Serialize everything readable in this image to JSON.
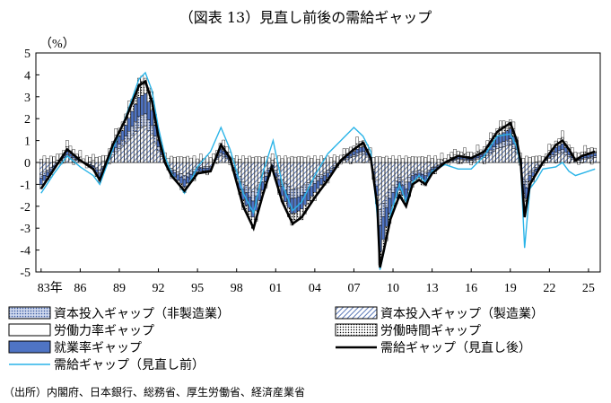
{
  "title": "（図表 13）見直し前後の需給ギャップ",
  "source": "（出所）内閣府、日本銀行、総務省、厚生労働省、経済産業省",
  "chart_data": {
    "type": "bar",
    "stacked": true,
    "ylabel": "（%）",
    "ylim": [
      -5,
      5
    ],
    "yticks": [
      "5",
      "4",
      "3",
      "2",
      "1",
      "0",
      "-1",
      "-2",
      "-3",
      "-4",
      "-5"
    ],
    "xticks": [
      "83年",
      "86",
      "89",
      "92",
      "95",
      "98",
      "01",
      "04",
      "07",
      "10",
      "13",
      "16",
      "19",
      "22",
      "25"
    ],
    "legend": [
      {
        "name": "資本投入ギャップ（非製造業）",
        "style": "dotted-fill"
      },
      {
        "name": "資本投入ギャップ（製造業）",
        "style": "hatched"
      },
      {
        "name": "労働力率ギャップ",
        "style": "white-box"
      },
      {
        "name": "労働時間ギャップ",
        "style": "dots"
      },
      {
        "name": "就業率ギャップ",
        "style": "blue-box"
      },
      {
        "name": "需給ギャップ（見直し後）",
        "style": "black-line"
      },
      {
        "name": "需給ギャップ（見直し前）",
        "style": "cyan-line"
      }
    ],
    "key_points_after": [
      [
        1983.0,
        -1.2
      ],
      [
        1984.0,
        -0.3
      ],
      [
        1985.0,
        0.6
      ],
      [
        1986.0,
        0.1
      ],
      [
        1987.0,
        -0.3
      ],
      [
        1987.5,
        -0.8
      ],
      [
        1988.5,
        0.8
      ],
      [
        1989.5,
        2.0
      ],
      [
        1990.5,
        3.5
      ],
      [
        1991.0,
        3.7
      ],
      [
        1991.5,
        2.8
      ],
      [
        1992.0,
        1.2
      ],
      [
        1992.5,
        0.0
      ],
      [
        1993.0,
        -0.6
      ],
      [
        1994.0,
        -1.3
      ],
      [
        1995.0,
        -0.5
      ],
      [
        1996.0,
        -0.4
      ],
      [
        1996.8,
        0.8
      ],
      [
        1997.5,
        0.2
      ],
      [
        1998.5,
        -2.0
      ],
      [
        1999.3,
        -3.0
      ],
      [
        2000.0,
        -1.5
      ],
      [
        2000.7,
        -0.2
      ],
      [
        2001.5,
        -1.8
      ],
      [
        2002.3,
        -2.8
      ],
      [
        2003.0,
        -2.5
      ],
      [
        2004.0,
        -1.6
      ],
      [
        2005.0,
        -0.8
      ],
      [
        2006.0,
        0.1
      ],
      [
        2007.0,
        0.6
      ],
      [
        2007.7,
        0.9
      ],
      [
        2008.3,
        0.2
      ],
      [
        2008.8,
        -2.0
      ],
      [
        2009.0,
        -4.8
      ],
      [
        2009.3,
        -4.0
      ],
      [
        2009.8,
        -2.6
      ],
      [
        2010.5,
        -1.5
      ],
      [
        2011.0,
        -2.0
      ],
      [
        2011.5,
        -1.0
      ],
      [
        2012.0,
        -0.8
      ],
      [
        2012.5,
        -1.0
      ],
      [
        2013.0,
        -0.5
      ],
      [
        2014.0,
        0.0
      ],
      [
        2015.0,
        0.3
      ],
      [
        2016.0,
        0.2
      ],
      [
        2017.0,
        0.5
      ],
      [
        2018.0,
        1.4
      ],
      [
        2019.0,
        1.8
      ],
      [
        2019.5,
        1.0
      ],
      [
        2019.8,
        0.0
      ],
      [
        2020.1,
        -2.5
      ],
      [
        2020.5,
        -1.0
      ],
      [
        2021.0,
        -0.5
      ],
      [
        2021.5,
        0.0
      ],
      [
        2022.5,
        0.8
      ],
      [
        2023.0,
        1.0
      ],
      [
        2023.5,
        0.6
      ],
      [
        2024.0,
        0.1
      ],
      [
        2024.5,
        0.3
      ],
      [
        2025.5,
        0.5
      ]
    ],
    "key_points_before": [
      [
        1983.0,
        -1.4
      ],
      [
        1984.0,
        -0.5
      ],
      [
        1985.0,
        0.3
      ],
      [
        1986.0,
        -0.2
      ],
      [
        1987.0,
        -0.6
      ],
      [
        1987.5,
        -1.0
      ],
      [
        1988.5,
        0.6
      ],
      [
        1989.5,
        2.1
      ],
      [
        1990.5,
        3.8
      ],
      [
        1991.0,
        4.1
      ],
      [
        1991.5,
        3.3
      ],
      [
        1992.0,
        1.6
      ],
      [
        1992.5,
        0.3
      ],
      [
        1993.0,
        -0.5
      ],
      [
        1994.0,
        -1.4
      ],
      [
        1995.0,
        -0.2
      ],
      [
        1996.0,
        0.5
      ],
      [
        1996.8,
        1.6
      ],
      [
        1997.5,
        0.6
      ],
      [
        1998.5,
        -1.4
      ],
      [
        1999.3,
        -2.3
      ],
      [
        2000.0,
        -0.5
      ],
      [
        2000.8,
        1.0
      ],
      [
        2001.5,
        -1.0
      ],
      [
        2002.3,
        -2.2
      ],
      [
        2003.0,
        -1.8
      ],
      [
        2004.0,
        -0.6
      ],
      [
        2005.0,
        0.4
      ],
      [
        2006.0,
        1.0
      ],
      [
        2007.0,
        1.6
      ],
      [
        2007.7,
        1.2
      ],
      [
        2008.3,
        0.5
      ],
      [
        2008.8,
        -2.5
      ],
      [
        2009.0,
        -4.9
      ],
      [
        2009.3,
        -4.1
      ],
      [
        2009.8,
        -2.4
      ],
      [
        2010.5,
        -1.0
      ],
      [
        2011.0,
        -1.8
      ],
      [
        2011.5,
        -0.9
      ],
      [
        2012.0,
        -0.6
      ],
      [
        2012.5,
        -0.9
      ],
      [
        2013.0,
        -0.4
      ],
      [
        2014.0,
        -0.1
      ],
      [
        2015.0,
        -0.3
      ],
      [
        2016.0,
        -0.3
      ],
      [
        2017.0,
        0.3
      ],
      [
        2018.0,
        1.2
      ],
      [
        2019.0,
        1.3
      ],
      [
        2019.5,
        0.7
      ],
      [
        2019.8,
        -0.2
      ],
      [
        2020.1,
        -3.9
      ],
      [
        2020.5,
        -1.2
      ],
      [
        2021.0,
        -0.8
      ],
      [
        2021.5,
        -0.3
      ],
      [
        2022.5,
        -0.2
      ],
      [
        2023.0,
        0.0
      ],
      [
        2023.5,
        -0.4
      ],
      [
        2024.0,
        -0.6
      ],
      [
        2024.5,
        -0.5
      ],
      [
        2025.5,
        -0.3
      ]
    ]
  }
}
